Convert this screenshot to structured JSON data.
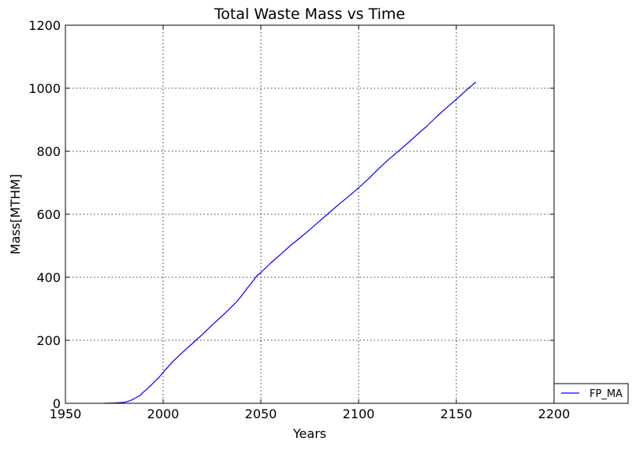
{
  "chart_data": {
    "type": "line",
    "title": "Total Waste Mass vs Time",
    "xlabel": "Years",
    "ylabel": "Mass[MTHM]",
    "xlim": [
      1950,
      2200
    ],
    "ylim": [
      0,
      1200
    ],
    "xticks": [
      "1950",
      "2000",
      "2050",
      "2100",
      "2150",
      "2200"
    ],
    "yticks": [
      "0",
      "200",
      "400",
      "600",
      "800",
      "1000",
      "1200"
    ],
    "grid": true,
    "legend_position": "outside-bottom-right",
    "series": [
      {
        "name": "FP_MA",
        "color": "#0000ff",
        "x": [
          1970,
          1975,
          1980,
          1983,
          1985,
          1988,
          1990,
          1993,
          1995,
          1998,
          2000,
          2005,
          2010,
          2015,
          2020,
          2025,
          2030,
          2035,
          2038,
          2040,
          2043,
          2045,
          2048,
          2050,
          2055,
          2060,
          2065,
          2070,
          2075,
          2080,
          2085,
          2090,
          2095,
          2100,
          2105,
          2110,
          2115,
          2120,
          2125,
          2130,
          2135,
          2140,
          2145,
          2150,
          2155,
          2160
        ],
        "y": [
          0,
          1,
          3,
          8,
          14,
          24,
          36,
          52,
          65,
          83,
          98,
          133,
          162,
          190,
          218,
          248,
          276,
          306,
          325,
          340,
          365,
          380,
          405,
          415,
          445,
          472,
          500,
          525,
          551,
          578,
          605,
          632,
          657,
          684,
          712,
          743,
          772,
          798,
          825,
          853,
          880,
          910,
          938,
          965,
          993,
          1020
        ]
      }
    ]
  }
}
